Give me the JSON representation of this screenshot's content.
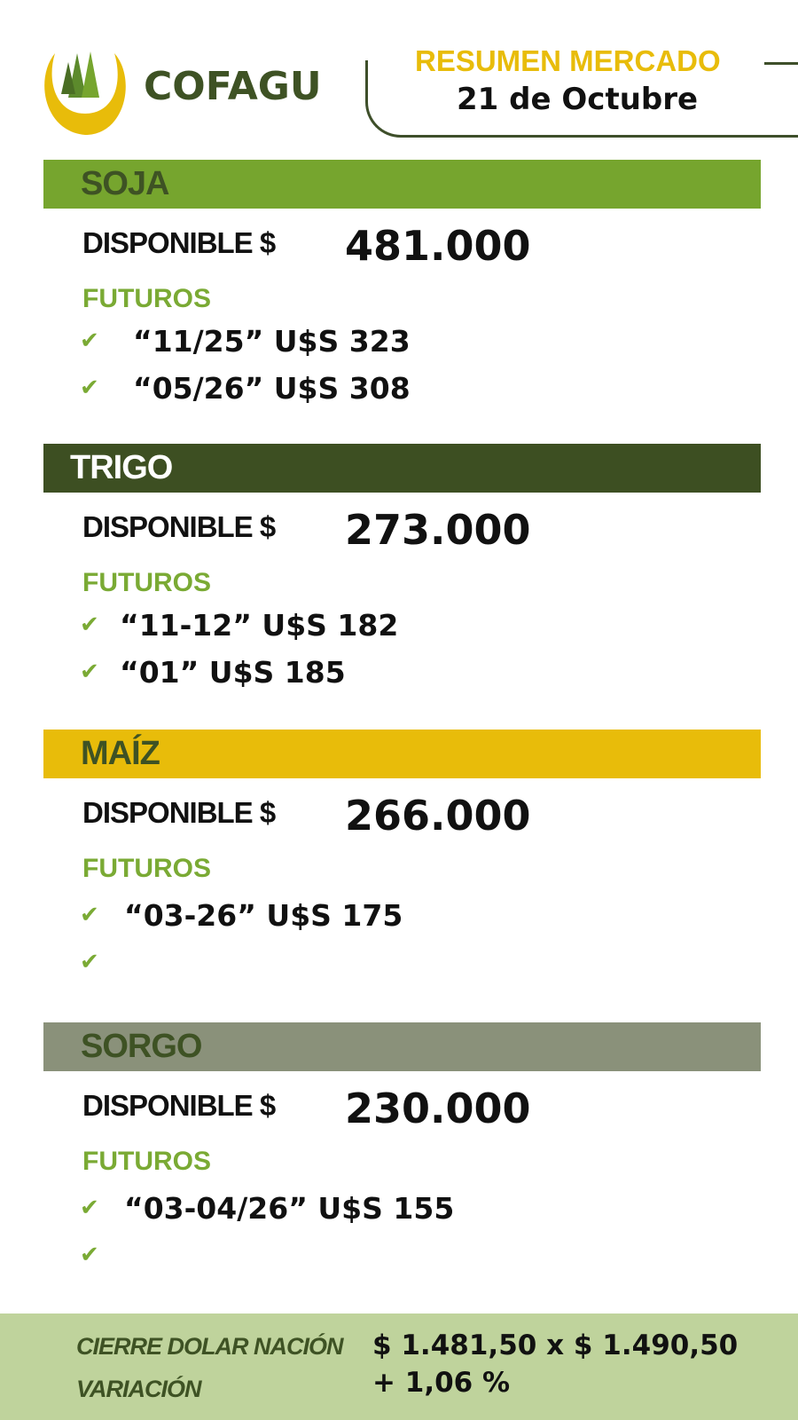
{
  "brand": {
    "name": "COFAGU",
    "colors": {
      "dark_green": "#3e5224",
      "yellow": "#e8bc0a",
      "green": "#76a52e"
    }
  },
  "header": {
    "title": "RESUMEN MERCADO",
    "date": "21 de Octubre"
  },
  "labels": {
    "disponible": "DISPONIBLE $",
    "futuros": "FUTUROS"
  },
  "sections": [
    {
      "name": "SOJA",
      "color": "#76a52e",
      "disponible": "481.000",
      "futuros": [
        "“11/25” U$S 323",
        " “05/26” U$S 308"
      ]
    },
    {
      "name": "TRIGO",
      "color": "#3d4f22",
      "disponible": "273.000",
      "futuros": [
        "“11-12” U$S 182",
        " “01” U$S 185"
      ]
    },
    {
      "name": "MAÍZ",
      "color": "#e8bc0a",
      "disponible": "266.000",
      "futuros": [
        "“03-26” U$S 175",
        ""
      ]
    },
    {
      "name": "SORGO",
      "color": "#8a917a",
      "disponible": "230.000",
      "futuros": [
        "“03-04/26” U$S 155",
        ""
      ]
    }
  ],
  "footer": {
    "dolar_label": "CIERRE DOLAR NACIÓN",
    "dolar_value": "$ 1.481,50 x $ 1.490,50",
    "variacion_label": "VARIACIÓN",
    "variacion_value": "+ 1,06 %"
  }
}
